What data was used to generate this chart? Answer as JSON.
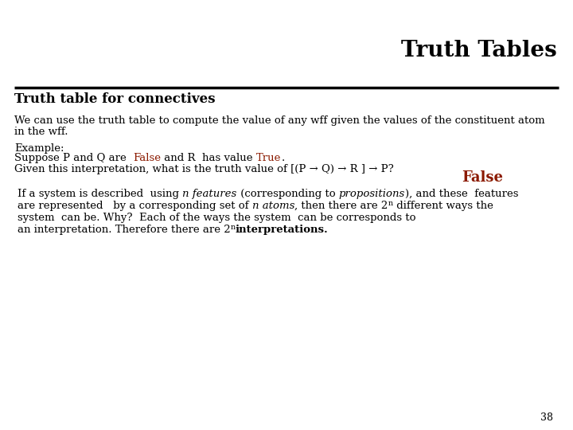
{
  "title": "Truth Tables",
  "subtitle": "Truth table for connectives",
  "background_color": "#ffffff",
  "body_color": "#000000",
  "red_color": "#8b1a00",
  "page_number": "38",
  "title_fontsize": 20,
  "subtitle_fontsize": 12,
  "body_fontsize": 9.5,
  "small_fontsize": 7.5,
  "answer_fontsize": 13
}
